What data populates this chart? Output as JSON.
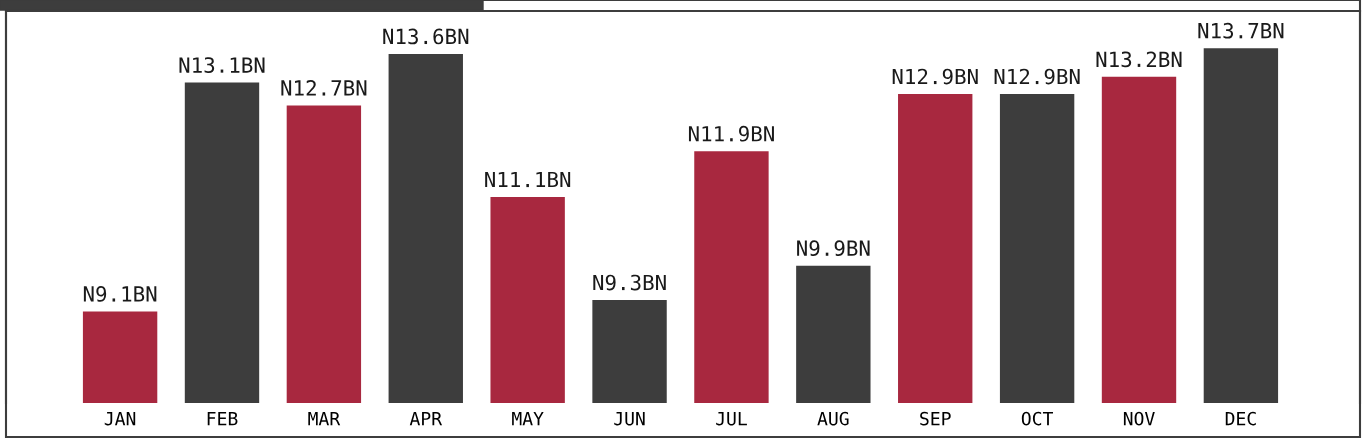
{
  "chart_data": {
    "type": "bar",
    "categories": [
      "JAN",
      "FEB",
      "MAR",
      "APR",
      "MAY",
      "JUN",
      "JUL",
      "AUG",
      "SEP",
      "OCT",
      "NOV",
      "DEC"
    ],
    "values": [
      9.1,
      13.1,
      12.7,
      13.6,
      11.1,
      9.3,
      11.9,
      9.9,
      12.9,
      12.9,
      13.2,
      13.7
    ],
    "colors": [
      "#a8283f",
      "#3d3d3d",
      "#a8283f",
      "#3d3d3d",
      "#a8283f",
      "#3d3d3d",
      "#a8283f",
      "#3d3d3d",
      "#a8283f",
      "#3d3d3d",
      "#a8283f",
      "#3d3d3d"
    ],
    "value_labels": [
      "N9.1BN",
      "N13.1BN",
      "N12.7BN",
      "N13.6BN",
      "N11.1BN",
      "N9.3BN",
      "N11.9BN",
      "N9.9BN",
      "N12.9BN",
      "N12.9BN",
      "N13.2BN",
      "N13.7BN"
    ],
    "ylim": [
      7.5,
      14.35
    ],
    "tick_labels": "x",
    "grid": false
  }
}
